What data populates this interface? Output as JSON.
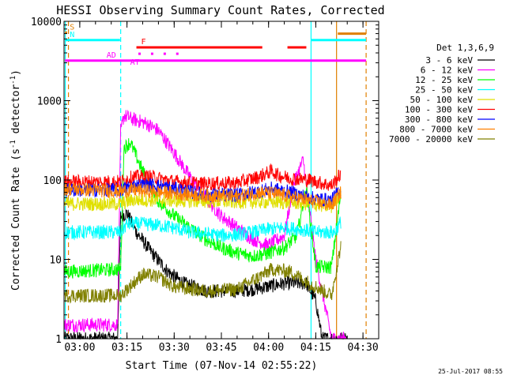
{
  "chart_data": {
    "type": "line",
    "title": "HESSI Observing Summary Count Rates, Corrected",
    "xlabel": "Start Time (07-Nov-14 02:55:22)",
    "ylabel_main": "Corrected Count Rate (s",
    "ylabel_sup1": "-1",
    "ylabel_mid": " detector",
    "ylabel_sup2": "-1",
    "ylabel_end": ")",
    "yscale": "log",
    "xlim_min": [
      0,
      100
    ],
    "ylim": [
      1,
      10000
    ],
    "x_ticks": [
      {
        "label": "03:00",
        "t": 5
      },
      {
        "label": "03:15",
        "t": 20
      },
      {
        "label": "03:30",
        "t": 35
      },
      {
        "label": "03:45",
        "t": 50
      },
      {
        "label": "04:00",
        "t": 65
      },
      {
        "label": "04:15",
        "t": 80
      },
      {
        "label": "04:30",
        "t": 95
      }
    ],
    "y_ticks": [
      {
        "label": "1",
        "v": 1
      },
      {
        "label": "10",
        "v": 10
      },
      {
        "label": "100",
        "v": 100
      },
      {
        "label": "1000",
        "v": 1000
      },
      {
        "label": "10000",
        "v": 10000
      }
    ],
    "legend_title": "Det 1,3,6,9",
    "series": [
      {
        "name": "3 - 6 keV",
        "color": "#000000",
        "points": [
          [
            0,
            1
          ],
          [
            17,
            1
          ],
          [
            18,
            35
          ],
          [
            20,
            38
          ],
          [
            23,
            22
          ],
          [
            28,
            12
          ],
          [
            33,
            7
          ],
          [
            38,
            5
          ],
          [
            45,
            4
          ],
          [
            52,
            4
          ],
          [
            55,
            4
          ],
          [
            60,
            4.2
          ],
          [
            64,
            4.5
          ],
          [
            70,
            5
          ],
          [
            77,
            5
          ],
          [
            80,
            3
          ],
          [
            82,
            1
          ],
          [
            90,
            1
          ]
        ]
      },
      {
        "name": "6 - 12 keV",
        "color": "#ff00ff",
        "points": [
          [
            0,
            1.5
          ],
          [
            17,
            1.5
          ],
          [
            18,
            400
          ],
          [
            19,
            650
          ],
          [
            22,
            580
          ],
          [
            26,
            520
          ],
          [
            30,
            420
          ],
          [
            35,
            220
          ],
          [
            40,
            110
          ],
          [
            45,
            60
          ],
          [
            50,
            35
          ],
          [
            55,
            25
          ],
          [
            60,
            18
          ],
          [
            65,
            15
          ],
          [
            70,
            20
          ],
          [
            73,
            90
          ],
          [
            76,
            180
          ],
          [
            80,
            10
          ],
          [
            85,
            1
          ],
          [
            90,
            1
          ]
        ]
      },
      {
        "name": "12 - 25 keV",
        "color": "#00ff00",
        "points": [
          [
            0,
            7
          ],
          [
            18,
            7.5
          ],
          [
            19,
            250
          ],
          [
            21,
            300
          ],
          [
            25,
            130
          ],
          [
            30,
            55
          ],
          [
            35,
            35
          ],
          [
            40,
            25
          ],
          [
            45,
            18
          ],
          [
            50,
            14
          ],
          [
            55,
            12
          ],
          [
            60,
            11
          ],
          [
            65,
            12
          ],
          [
            70,
            14
          ],
          [
            74,
            20
          ],
          [
            77,
            80
          ],
          [
            80,
            8
          ],
          [
            85,
            8
          ],
          [
            88,
            70
          ]
        ]
      },
      {
        "name": "25 - 50 keV",
        "color": "#00ffff",
        "points": [
          [
            0,
            22
          ],
          [
            18,
            22
          ],
          [
            20,
            28
          ],
          [
            25,
            28
          ],
          [
            30,
            27
          ],
          [
            35,
            25
          ],
          [
            40,
            22
          ],
          [
            45,
            21
          ],
          [
            50,
            20
          ],
          [
            55,
            20.5
          ],
          [
            60,
            22
          ],
          [
            65,
            24
          ],
          [
            70,
            25
          ],
          [
            75,
            24
          ],
          [
            80,
            22
          ],
          [
            83,
            22
          ],
          [
            86,
            22
          ],
          [
            88,
            30
          ]
        ]
      },
      {
        "name": "50 - 100 keV",
        "color": "#e0e000",
        "points": [
          [
            0,
            50
          ],
          [
            18,
            50
          ],
          [
            22,
            56
          ],
          [
            28,
            56
          ],
          [
            35,
            55
          ],
          [
            45,
            54
          ],
          [
            55,
            53
          ],
          [
            65,
            53
          ],
          [
            72,
            52
          ],
          [
            78,
            50
          ],
          [
            85,
            46
          ],
          [
            88,
            70
          ]
        ]
      },
      {
        "name": "100 - 300 keV",
        "color": "#ff0000",
        "points": [
          [
            0,
            95
          ],
          [
            18,
            95
          ],
          [
            22,
            110
          ],
          [
            28,
            110
          ],
          [
            35,
            95
          ],
          [
            45,
            90
          ],
          [
            55,
            92
          ],
          [
            62,
            110
          ],
          [
            66,
            130
          ],
          [
            68,
            115
          ],
          [
            72,
            105
          ],
          [
            78,
            100
          ],
          [
            85,
            85
          ],
          [
            88,
            120
          ]
        ]
      },
      {
        "name": "300 - 800 keV",
        "color": "#0000ff",
        "points": [
          [
            0,
            75
          ],
          [
            18,
            75
          ],
          [
            22,
            85
          ],
          [
            28,
            87
          ],
          [
            35,
            78
          ],
          [
            45,
            65
          ],
          [
            55,
            65
          ],
          [
            62,
            72
          ],
          [
            66,
            78
          ],
          [
            72,
            70
          ],
          [
            78,
            60
          ],
          [
            85,
            55
          ],
          [
            88,
            80
          ]
        ]
      },
      {
        "name": "800 - 7000 keV",
        "color": "#ff8000",
        "points": [
          [
            0,
            78
          ],
          [
            18,
            72
          ],
          [
            22,
            75
          ],
          [
            28,
            72
          ],
          [
            35,
            68
          ],
          [
            45,
            64
          ],
          [
            55,
            62
          ],
          [
            62,
            70
          ],
          [
            66,
            68
          ],
          [
            72,
            62
          ],
          [
            78,
            55
          ],
          [
            85,
            48
          ],
          [
            88,
            70
          ]
        ]
      },
      {
        "name": "7000 - 20000 keV",
        "color": "#808000",
        "points": [
          [
            0,
            3.5
          ],
          [
            18,
            3.5
          ],
          [
            22,
            5
          ],
          [
            25,
            6.5
          ],
          [
            30,
            6
          ],
          [
            35,
            4.5
          ],
          [
            45,
            4
          ],
          [
            55,
            4.2
          ],
          [
            62,
            6
          ],
          [
            66,
            7.5
          ],
          [
            72,
            7
          ],
          [
            78,
            5
          ],
          [
            85,
            3.5
          ],
          [
            88,
            15
          ]
        ]
      }
    ],
    "state_bars": [
      {
        "label": "S",
        "color": "#e08000",
        "t0": 0.3,
        "t1": 1.0,
        "v": 7200
      },
      {
        "label": "",
        "color": "#e08000",
        "t0": 87,
        "t1": 96,
        "v": 7000
      },
      {
        "label": "N",
        "color": "#00ffff",
        "t0": 0.3,
        "t1": 17.8,
        "v": 5800
      },
      {
        "label": "",
        "color": "#00ffff",
        "t0": 78.5,
        "t1": 96,
        "v": 5800
      },
      {
        "label": "F",
        "color": "#ff0000",
        "t0": 23,
        "t1": 63,
        "v": 4700
      },
      {
        "label": "",
        "color": "#ff0000",
        "t0": 71,
        "t1": 77,
        "v": 4700
      },
      {
        "label": "",
        "color": "#ff00ff",
        "t0": 0.3,
        "t1": 96,
        "v": 3200
      }
    ],
    "state_labels": [
      {
        "text": "AD",
        "color": "#ff00ff",
        "t": 13.5,
        "v": 3800
      },
      {
        "text": "AT",
        "color": "#ff00ff",
        "t": 21,
        "v": 3100
      }
    ],
    "ad_dots": {
      "color": "#ff00ff",
      "v": 3900,
      "t": [
        24,
        28,
        32,
        36
      ]
    },
    "vlines": [
      {
        "t": 0.4,
        "color": "#00ffff",
        "style": "solid"
      },
      {
        "t": 1.4,
        "color": "#e08000",
        "style": "dashed"
      },
      {
        "t": 18.0,
        "color": "#00ffff",
        "style": "dashed"
      },
      {
        "t": 78.5,
        "color": "#00ffff",
        "style": "solid"
      },
      {
        "t": 86.6,
        "color": "#e08000",
        "style": "solid"
      },
      {
        "t": 96.0,
        "color": "#e08000",
        "style": "dashed"
      }
    ]
  },
  "footer": {
    "date_stamp": "25-Jul-2017 08:55"
  }
}
